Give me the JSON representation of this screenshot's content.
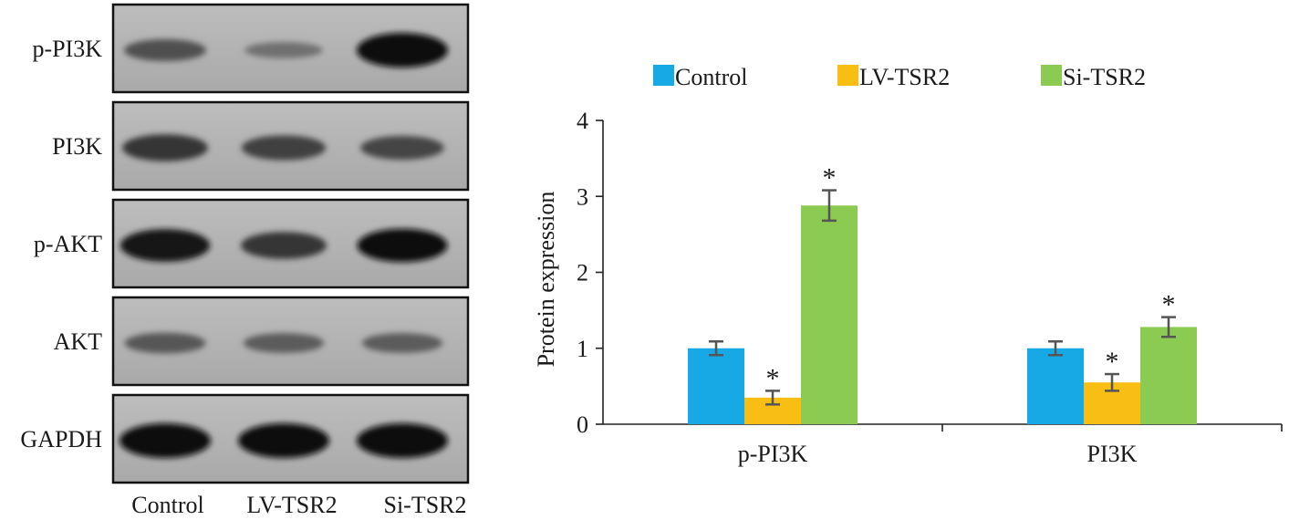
{
  "blot": {
    "rows": [
      {
        "label": "p-PI3K",
        "bands": [
          0.5,
          0.28,
          1.0
        ]
      },
      {
        "label": "PI3K",
        "bands": [
          0.7,
          0.62,
          0.58
        ]
      },
      {
        "label": "p-AKT",
        "bands": [
          0.92,
          0.7,
          0.95
        ]
      },
      {
        "label": "AKT",
        "bands": [
          0.45,
          0.42,
          0.42
        ]
      },
      {
        "label": "GAPDH",
        "bands": [
          1.0,
          1.0,
          1.0
        ]
      }
    ],
    "lanes": [
      "Control",
      "LV-TSR2",
      "Si-TSR2"
    ]
  },
  "chart_data": {
    "type": "bar",
    "categories": [
      "p-PI3K",
      "PI3K"
    ],
    "series": [
      {
        "name": "Control",
        "color": "#17a9e6",
        "values": [
          1.0,
          1.0
        ],
        "errors": [
          0.09,
          0.09
        ],
        "sig": [
          "",
          ""
        ]
      },
      {
        "name": "LV-TSR2",
        "color": "#f8be14",
        "values": [
          0.35,
          0.55
        ],
        "errors": [
          0.09,
          0.11
        ],
        "sig": [
          "*",
          "*"
        ]
      },
      {
        "name": "Si-TSR2",
        "color": "#8ccb52",
        "values": [
          2.88,
          1.28
        ],
        "errors": [
          0.2,
          0.13
        ],
        "sig": [
          "*",
          "*"
        ]
      }
    ],
    "xlabel": "",
    "ylabel": "Protein expression",
    "ylim": [
      0,
      4
    ],
    "yticks": [
      "0",
      "1",
      "2",
      "3",
      "4"
    ],
    "grid": false,
    "legend_position": "top"
  }
}
